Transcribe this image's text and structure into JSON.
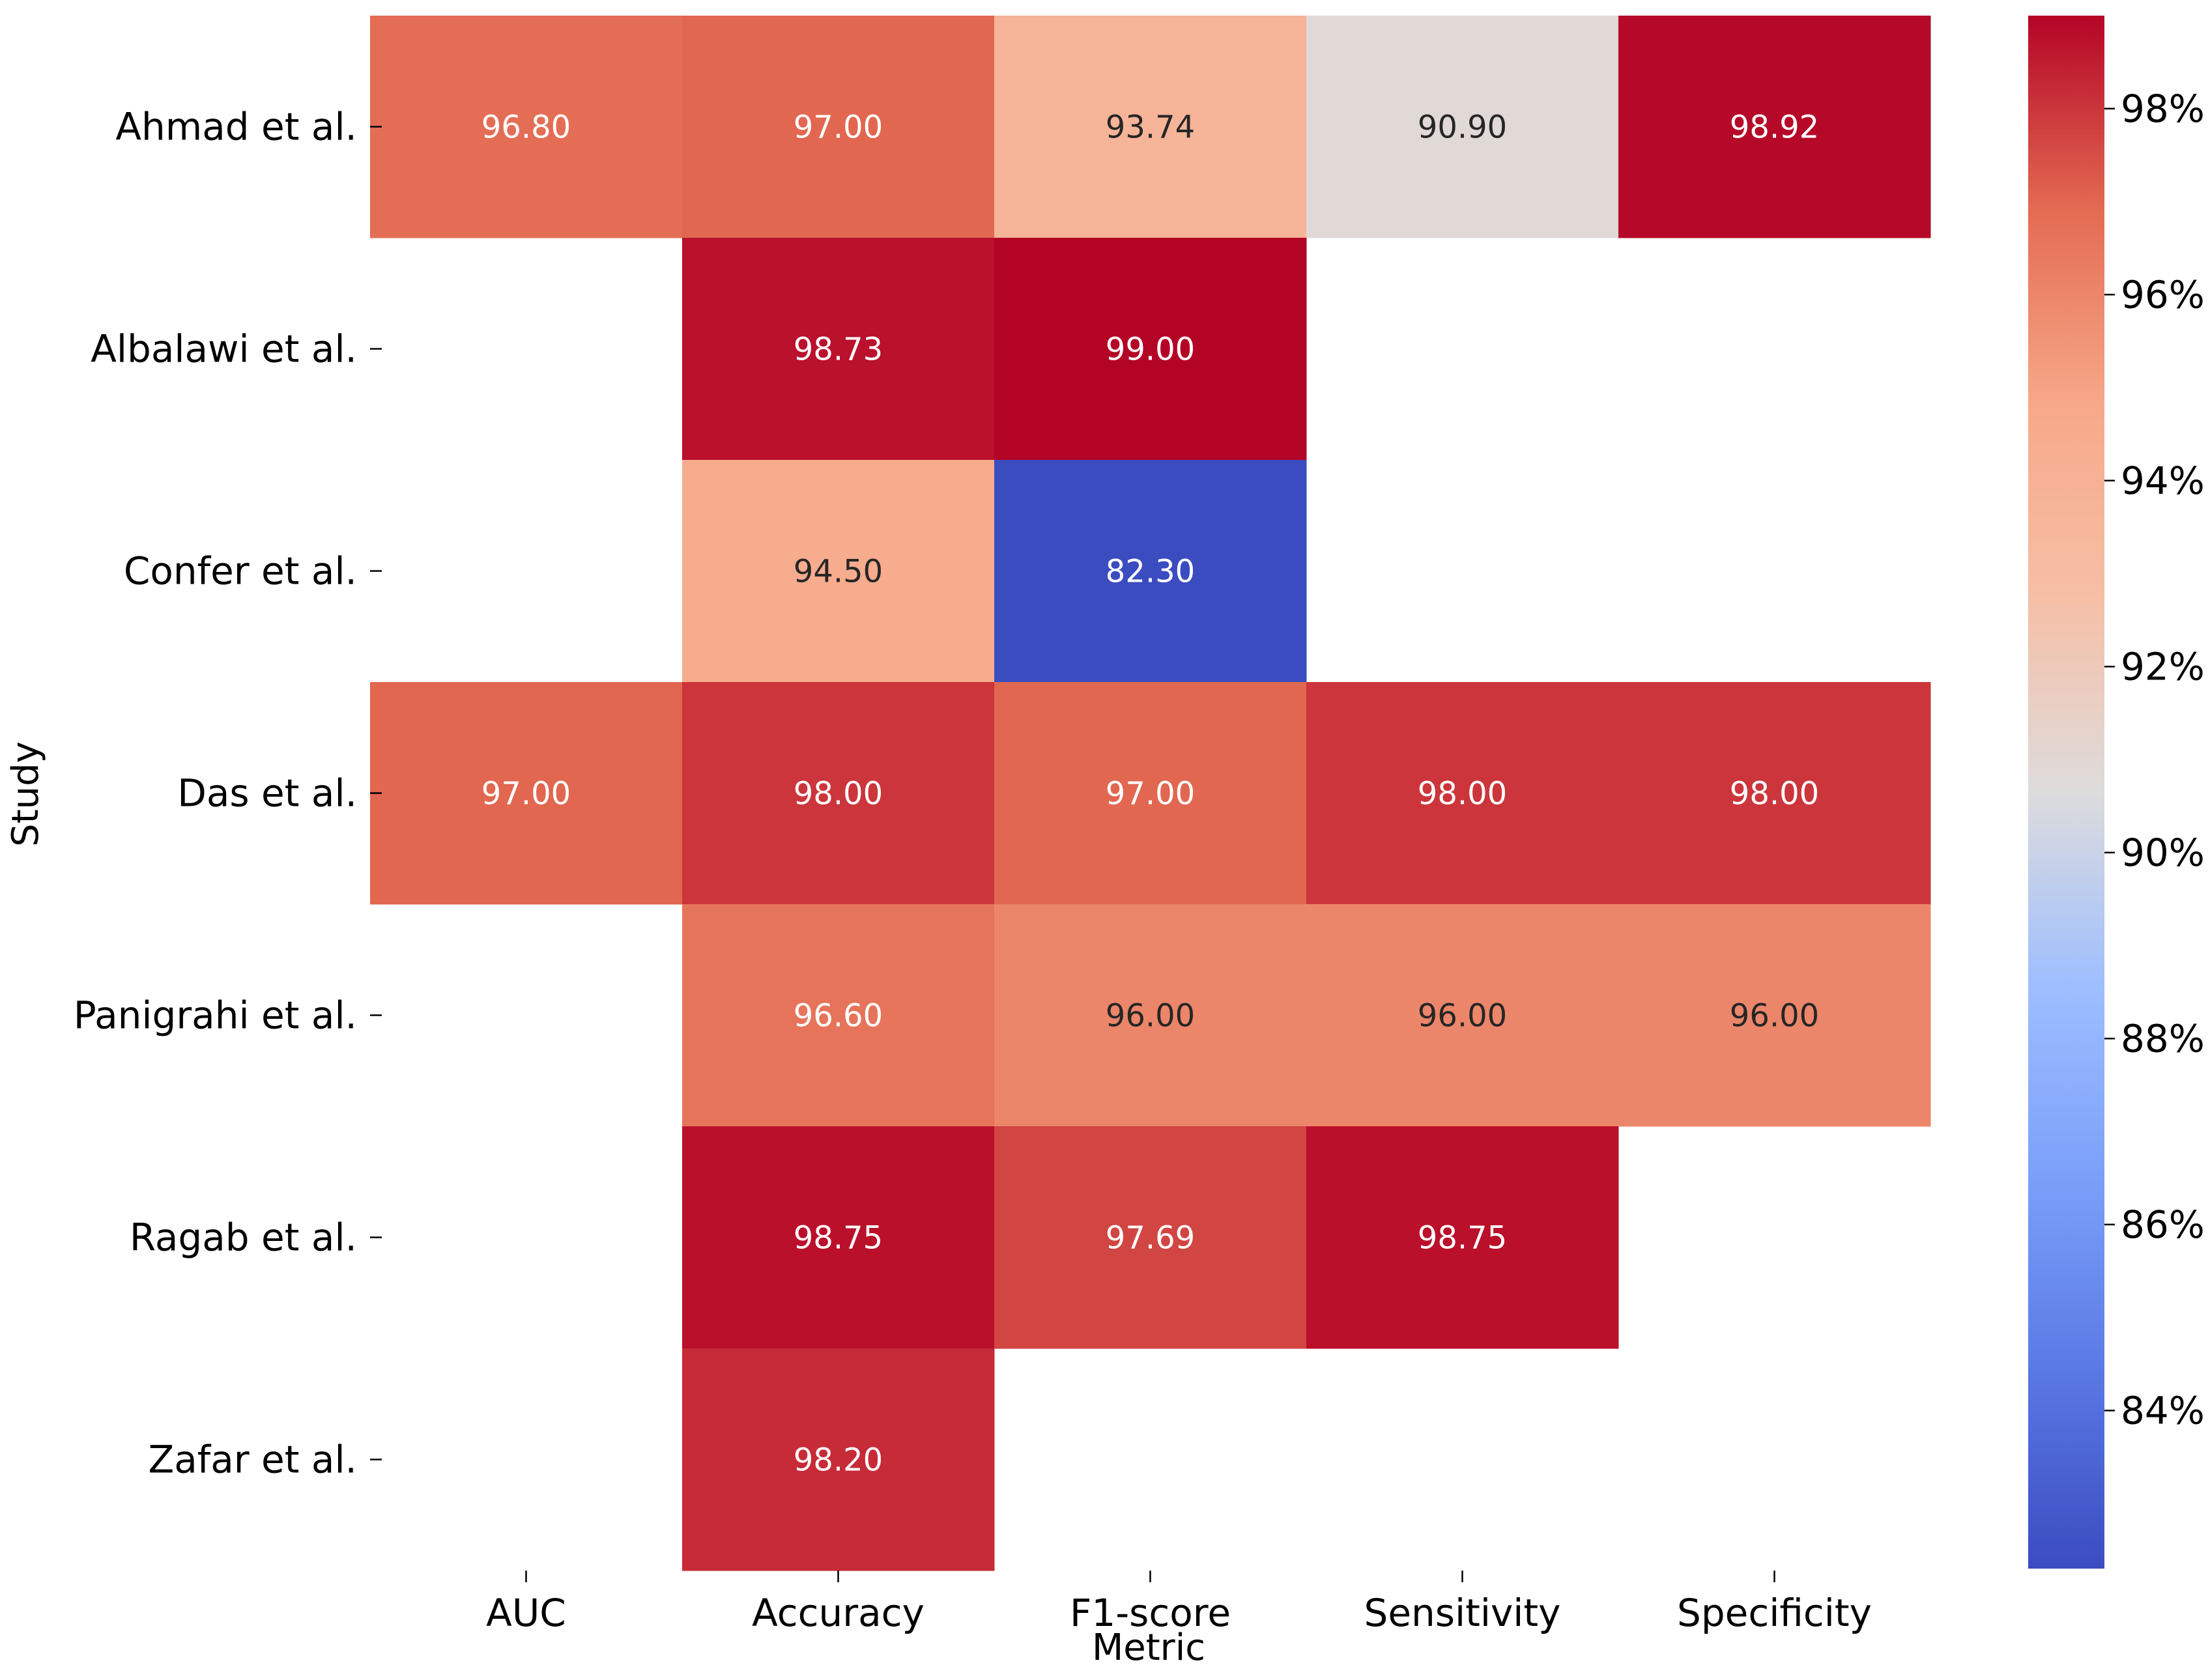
{
  "chart_data": {
    "type": "heatmap",
    "xlabel": "Metric",
    "ylabel": "Study",
    "columns": [
      "AUC",
      "Accuracy",
      "F1-score",
      "Sensitivity",
      "Specificity"
    ],
    "rows": [
      "Ahmad et al.",
      "Albalawi et al.",
      "Confer et al.",
      "Das et al.",
      "Panigrahi et al.",
      "Ragab et al.",
      "Zafar et al."
    ],
    "values": [
      [
        96.8,
        97.0,
        93.74,
        90.9,
        98.92
      ],
      [
        null,
        98.73,
        99.0,
        null,
        null
      ],
      [
        null,
        94.5,
        82.3,
        null,
        null
      ],
      [
        97.0,
        98.0,
        97.0,
        98.0,
        98.0
      ],
      [
        null,
        96.6,
        96.0,
        96.0,
        96.0
      ],
      [
        null,
        98.75,
        97.69,
        98.75,
        null
      ],
      [
        null,
        98.2,
        null,
        null,
        null
      ]
    ],
    "value_labels": [
      [
        "96.80",
        "97.00",
        "93.74",
        "90.90",
        "98.92"
      ],
      [
        null,
        "98.73",
        "99.00",
        null,
        null
      ],
      [
        null,
        "94.50",
        "82.30",
        null,
        null
      ],
      [
        "97.00",
        "98.00",
        "97.00",
        "98.00",
        "98.00"
      ],
      [
        null,
        "96.60",
        "96.00",
        "96.00",
        "96.00"
      ],
      [
        null,
        "98.75",
        "97.69",
        "98.75",
        null
      ],
      [
        null,
        "98.20",
        null,
        null,
        null
      ]
    ],
    "colorbar": {
      "colormap": "coolwarm",
      "range": [
        82.3,
        99.0
      ],
      "ticks": [
        84,
        86,
        88,
        90,
        92,
        94,
        96,
        98
      ],
      "tick_labels": [
        "84%",
        "86%",
        "88%",
        "90%",
        "92%",
        "94%",
        "96%",
        "98%"
      ]
    }
  }
}
